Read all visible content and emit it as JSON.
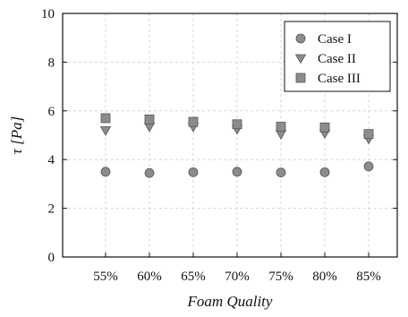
{
  "chart_data": {
    "type": "scatter",
    "title": "",
    "xlabel": "Foam Quality",
    "ylabel": "τ [Pa]",
    "categories": [
      "55%",
      "60%",
      "65%",
      "70%",
      "75%",
      "80%",
      "85%"
    ],
    "ylim": [
      0,
      10
    ],
    "yticks": [
      0,
      2,
      4,
      6,
      8,
      10
    ],
    "grid": true,
    "legend_position": "top-right",
    "series": [
      {
        "name": "Case I",
        "marker": "circle",
        "color": "#8c8c8c",
        "values": [
          3.5,
          3.45,
          3.48,
          3.5,
          3.47,
          3.48,
          3.72
        ]
      },
      {
        "name": "Case II",
        "marker": "triangle-down",
        "color": "#8c8c8c",
        "values": [
          5.2,
          5.35,
          5.35,
          5.25,
          5.05,
          5.08,
          4.85
        ]
      },
      {
        "name": "Case III",
        "marker": "square",
        "color": "#8c8c8c",
        "values": [
          5.7,
          5.65,
          5.55,
          5.45,
          5.35,
          5.32,
          5.05
        ]
      }
    ]
  }
}
